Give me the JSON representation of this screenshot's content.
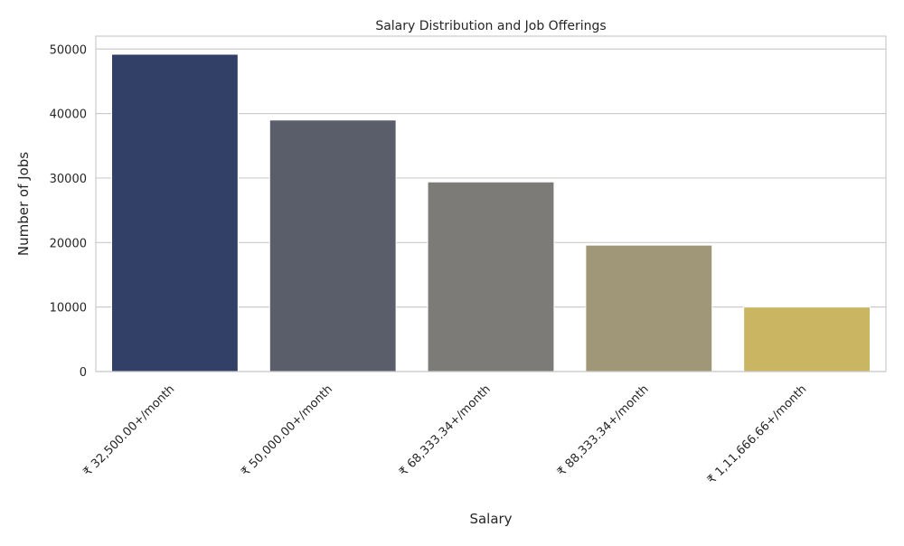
{
  "chart_data": {
    "type": "bar",
    "title": "Salary Distribution and Job Offerings",
    "xlabel": "Salary",
    "ylabel": "Number of Jobs",
    "categories": [
      "₹ 32,500.00+/month",
      "₹ 50,000.00+/month",
      "₹ 68,333.34+/month",
      "₹ 88,333.34+/month",
      "₹ 1,11,666.66+/month"
    ],
    "values": [
      49200,
      39000,
      29400,
      19600,
      10000
    ],
    "colors": [
      "#323F67",
      "#5A5E6B",
      "#7C7B78",
      "#9F9777",
      "#C9B562"
    ],
    "ylim": [
      0,
      52000
    ],
    "yticks": [
      0,
      10000,
      20000,
      30000,
      40000,
      50000
    ],
    "grid": true,
    "legend": "none"
  }
}
